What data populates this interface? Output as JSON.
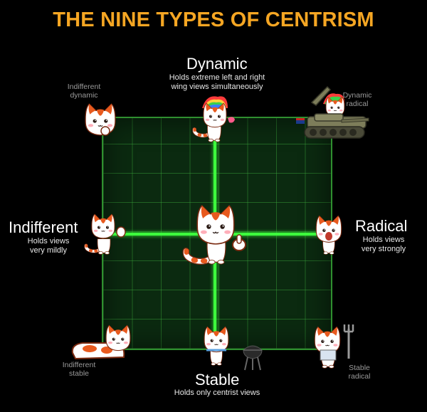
{
  "title": "THE NINE TYPES OF CENTRISM",
  "colors": {
    "title": "#f5a623",
    "grid_line": "#3dff3d",
    "grid_bg": "#0b2a10",
    "cat_orange": "#e85a1e",
    "cat_white": "#ffffff",
    "background": "#000000"
  },
  "axes": {
    "top": {
      "label": "Dynamic",
      "description": "Holds extreme left and right wing views simultaneously",
      "desc_line1": "Holds extreme left and right",
      "desc_line2": "wing views simultaneously"
    },
    "left": {
      "label": "Indifferent",
      "desc_line1": "Holds views",
      "desc_line2": "very mildly"
    },
    "right": {
      "label": "Radical",
      "desc_line1": "Holds views",
      "desc_line2": "very strongly"
    },
    "bottom": {
      "label": "Stable",
      "description": "Holds only centrist views"
    }
  },
  "corners": {
    "top_left": {
      "line1": "Indifferent",
      "line2": "dynamic"
    },
    "top_right": {
      "line1": "Dynamic",
      "line2": "radical"
    },
    "bottom_left": {
      "line1": "Indifferent",
      "line2": "stable"
    },
    "bottom_right": {
      "line1": "Stable",
      "line2": "radical"
    }
  },
  "cats": [
    {
      "id": "indifferent-dynamic",
      "pose": "thinking",
      "icon": "thinking-cat-icon"
    },
    {
      "id": "dynamic",
      "pose": "rainbow-hair-winking",
      "icon": "rainbow-hair-cat-icon"
    },
    {
      "id": "dynamic-radical",
      "pose": "riding-tank",
      "icon": "tank-cat-icon"
    },
    {
      "id": "indifferent",
      "pose": "waving",
      "icon": "waving-cat-icon"
    },
    {
      "id": "centrist",
      "pose": "winking-thumbs-up",
      "icon": "thumbs-up-cat-icon"
    },
    {
      "id": "radical",
      "pose": "shouting",
      "icon": "shouting-cat-icon"
    },
    {
      "id": "indifferent-stable",
      "pose": "lying-down",
      "icon": "lying-cat-icon"
    },
    {
      "id": "stable",
      "pose": "grilling",
      "icon": "grilling-cat-icon"
    },
    {
      "id": "stable-radical",
      "pose": "holding-fork",
      "icon": "fork-cat-icon"
    }
  ]
}
